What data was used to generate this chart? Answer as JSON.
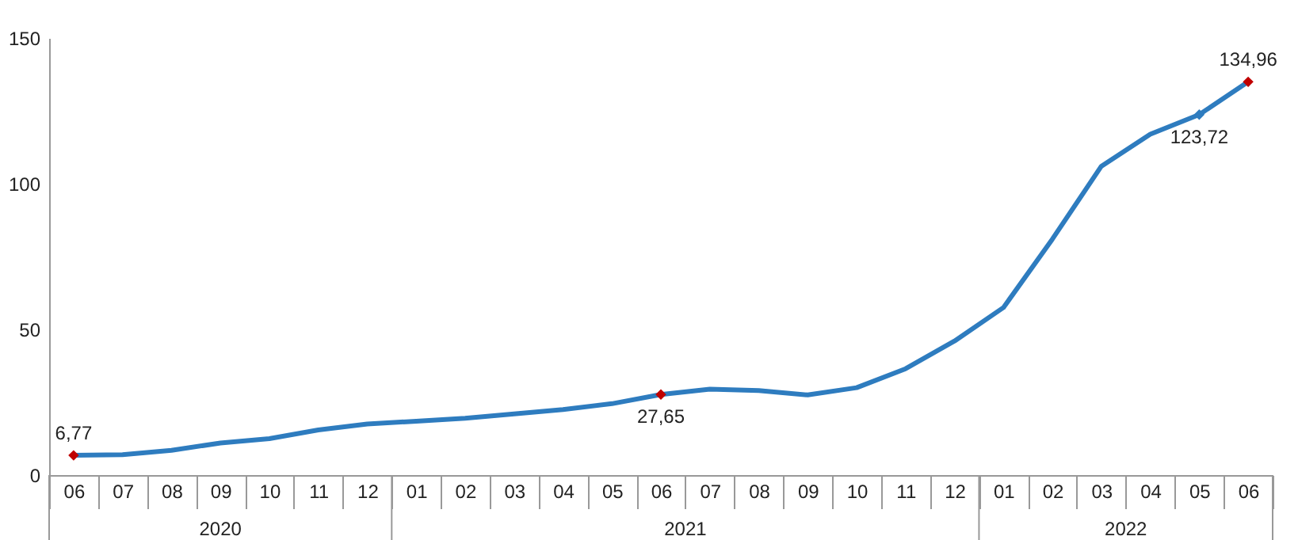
{
  "chart_data": {
    "type": "line",
    "categories": [
      "06",
      "07",
      "08",
      "09",
      "10",
      "11",
      "12",
      "01",
      "02",
      "03",
      "04",
      "05",
      "06",
      "07",
      "08",
      "09",
      "10",
      "11",
      "12",
      "01",
      "02",
      "03",
      "04",
      "05",
      "06"
    ],
    "series": [
      {
        "color": "#2e7cbf",
        "values": [
          6.77,
          7,
          8.5,
          11,
          12.5,
          15.5,
          17.5,
          18.5,
          19.5,
          21,
          22.5,
          24.5,
          27.65,
          29.5,
          29,
          27.5,
          30,
          36.5,
          46,
          57.5,
          81,
          106,
          117,
          123.72,
          134.96
        ],
        "colors": [
          "#c00000",
          null,
          null,
          null,
          null,
          null,
          null,
          null,
          null,
          null,
          null,
          null,
          "#c00000",
          null,
          null,
          null,
          null,
          null,
          null,
          null,
          null,
          null,
          null,
          "#2e7cbf",
          "#c00000"
        ],
        "value_labels": [
          "6,77",
          null,
          null,
          null,
          null,
          null,
          null,
          null,
          null,
          null,
          null,
          null,
          "27,65",
          null,
          null,
          null,
          null,
          null,
          null,
          null,
          null,
          null,
          null,
          "123,72",
          "134,96"
        ]
      }
    ],
    "annotations": [
      "2020",
      "2021",
      "2022"
    ],
    "ylim": [
      0,
      150
    ],
    "yticks": [
      0,
      50,
      100,
      150
    ]
  }
}
